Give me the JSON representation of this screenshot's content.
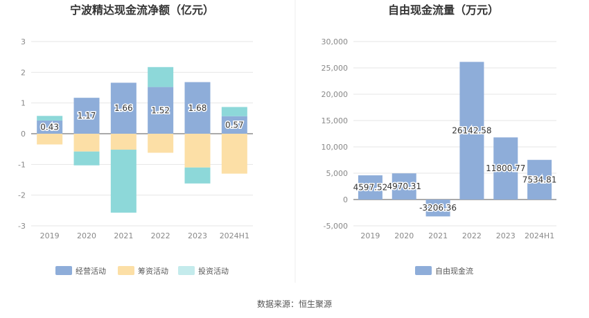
{
  "source": "数据来源：恒生聚源",
  "colors": {
    "operating": "#8eadd9",
    "financing": "#fcdfa6",
    "investing": "#8dd8d9",
    "free": "#8eadd9",
    "legend_investing_swatch": "#c4ebec"
  },
  "chart_data": [
    {
      "type": "bar",
      "stacked": true,
      "title": "宁波精达现金流净额（亿元）",
      "categories": [
        "2019",
        "2020",
        "2021",
        "2022",
        "2023",
        "2024H1"
      ],
      "ylim": [
        -3,
        3
      ],
      "yticks": [
        "3",
        "2",
        "1",
        "0",
        "-1",
        "-2",
        "-3"
      ],
      "grid": true,
      "legend_position": "bottom",
      "series": [
        {
          "name": "经营活动",
          "values": [
            0.43,
            1.17,
            1.66,
            1.52,
            1.68,
            0.57
          ],
          "labels": [
            "0.43",
            "1.17",
            "1.66",
            "1.52",
            "1.68",
            "0.57"
          ]
        },
        {
          "name": "筹资活动",
          "values": [
            -0.35,
            -0.58,
            -0.52,
            -0.62,
            -1.1,
            -1.3
          ]
        },
        {
          "name": "投资活动",
          "values": [
            0.15,
            -0.45,
            -2.05,
            0.65,
            -0.52,
            0.3
          ]
        }
      ]
    },
    {
      "type": "bar",
      "title": "自由现金流量（万元）",
      "categories": [
        "2019",
        "2020",
        "2021",
        "2022",
        "2023",
        "2024H1"
      ],
      "ylim": [
        -5000,
        30000
      ],
      "yticks": [
        "30,000",
        "25,000",
        "20,000",
        "15,000",
        "10,000",
        "5,000",
        "0",
        "-5,000"
      ],
      "grid": true,
      "legend_position": "bottom",
      "series": [
        {
          "name": "自由现金流",
          "values": [
            4597.52,
            4970.31,
            -3206.36,
            26142.58,
            11800.77,
            7534.81
          ],
          "labels": [
            "4597.52",
            "4970.31",
            "-3206.36",
            "26142.58",
            "11800.77",
            "7534.81"
          ]
        }
      ]
    }
  ]
}
